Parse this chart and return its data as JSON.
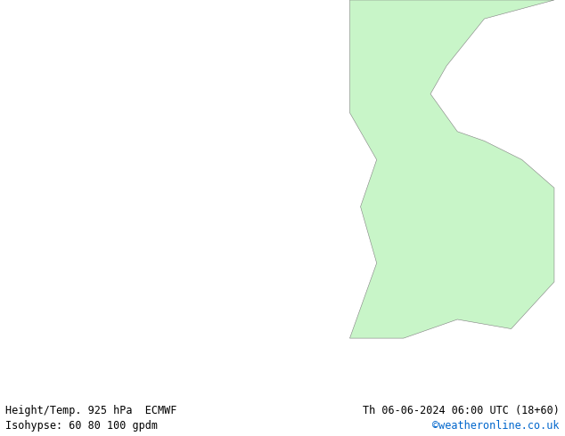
{
  "title_left": "Height/Temp. 925 hPa  ECMWF",
  "title_right": "Th 06-06-2024 06:00 UTC (18+60)",
  "subtitle_left": "Isohypse: 60 80 100 gpdm",
  "subtitle_right": "©weatheronline.co.uk",
  "subtitle_right_color": "#0066cc",
  "land_color": "#c8f5c8",
  "sea_color": "#e8e8e8",
  "border_color": "#808080",
  "fig_width": 6.34,
  "fig_height": 4.9,
  "dpi": 100,
  "bottom_bar_color": "#ffffff",
  "text_color": "#000000",
  "map_extent": [
    -75,
    30,
    30,
    72
  ],
  "contour_lines": [
    {
      "color": "#808080",
      "lw": 0.7
    },
    {
      "color": "#00aaaa",
      "lw": 1.2
    },
    {
      "color": "#ff8800",
      "lw": 1.2
    },
    {
      "color": "#cccc00",
      "lw": 1.2
    },
    {
      "color": "#aa00cc",
      "lw": 1.2
    },
    {
      "color": "#ff00ff",
      "lw": 1.2
    },
    {
      "color": "#ff0000",
      "lw": 1.2
    },
    {
      "color": "#0000ff",
      "lw": 1.2
    },
    {
      "color": "#cc0000",
      "lw": 1.2
    },
    {
      "color": "#00cc44",
      "lw": 1.2
    }
  ]
}
